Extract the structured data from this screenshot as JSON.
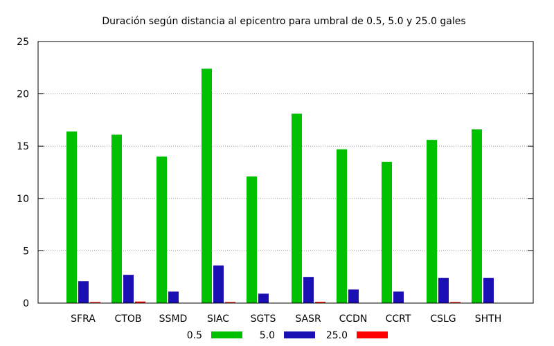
{
  "chart_data": {
    "type": "bar",
    "title": "Duración según distancia al epicentro para umbral de 0.5, 5.0 y 25.0 gales",
    "xlabel": "",
    "ylabel": "",
    "ylim": [
      0,
      25
    ],
    "yticks": [
      "0",
      "5",
      "10",
      "15",
      "20",
      "25"
    ],
    "grid": "horizontal dotted",
    "legend_position": "bottom",
    "categories": [
      "SFRA",
      "CTOB",
      "SSMD",
      "SIAC",
      "SGTS",
      "SASR",
      "CCDN",
      "CCRT",
      "CSLG",
      "SHTH"
    ],
    "series": [
      {
        "name": "0.5",
        "color": "#00c000",
        "values": [
          16.4,
          16.1,
          14.0,
          22.4,
          12.1,
          18.1,
          14.7,
          13.5,
          15.6,
          16.6
        ]
      },
      {
        "name": "5.0",
        "color": "#1a0fb3",
        "values": [
          2.1,
          2.7,
          1.1,
          3.6,
          0.9,
          2.5,
          1.3,
          1.1,
          2.4,
          2.4
        ]
      },
      {
        "name": "25.0",
        "color": "#ff0000",
        "values": [
          0.05,
          0.15,
          0.0,
          0.05,
          0.0,
          0.12,
          0.0,
          0.0,
          0.05,
          0.0
        ]
      }
    ]
  }
}
